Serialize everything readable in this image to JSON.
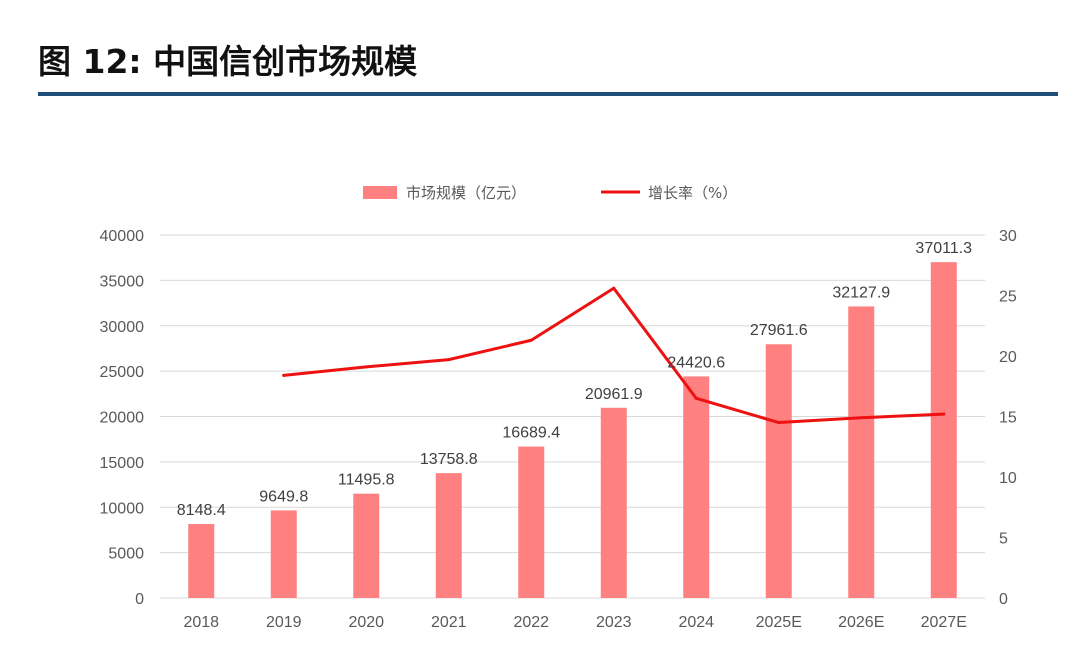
{
  "figure": {
    "title": "图 12: 中国信创市场规模"
  },
  "colors": {
    "bar": "#ff8080",
    "line": "#ee1111",
    "grid": "#d9d9d9",
    "rule": "#1f4e79"
  },
  "chart_data": {
    "type": "bar",
    "title": "",
    "categories": [
      "2018",
      "2019",
      "2020",
      "2021",
      "2022",
      "2023",
      "2024",
      "2025E",
      "2026E",
      "2027E"
    ],
    "series": [
      {
        "name": "市场规模（亿元）",
        "type": "bar",
        "axis": "left",
        "values": [
          8148.4,
          9649.8,
          11495.8,
          13758.8,
          16689.4,
          20961.9,
          24420.6,
          27961.6,
          32127.9,
          37011.3
        ],
        "labels": [
          "8148.4",
          "9649.8",
          "11495.8",
          "13758.8",
          "16689.4",
          "20961.9",
          "24420.6",
          "27961.6",
          "32127.9",
          "37011.3"
        ]
      },
      {
        "name": "增长率（%）",
        "type": "line",
        "axis": "right",
        "values": [
          null,
          18.4,
          19.1,
          19.7,
          21.3,
          25.6,
          16.5,
          14.5,
          14.9,
          15.2
        ]
      }
    ],
    "y_left": {
      "min": 0,
      "max": 40000,
      "ticks": [
        "0",
        "5000",
        "10000",
        "15000",
        "20000",
        "25000",
        "30000",
        "35000",
        "40000"
      ]
    },
    "y_right": {
      "min": 0,
      "max": 30,
      "ticks": [
        "0",
        "5",
        "10",
        "15",
        "20",
        "25",
        "30"
      ]
    },
    "grid": true,
    "legend": "top-center"
  }
}
